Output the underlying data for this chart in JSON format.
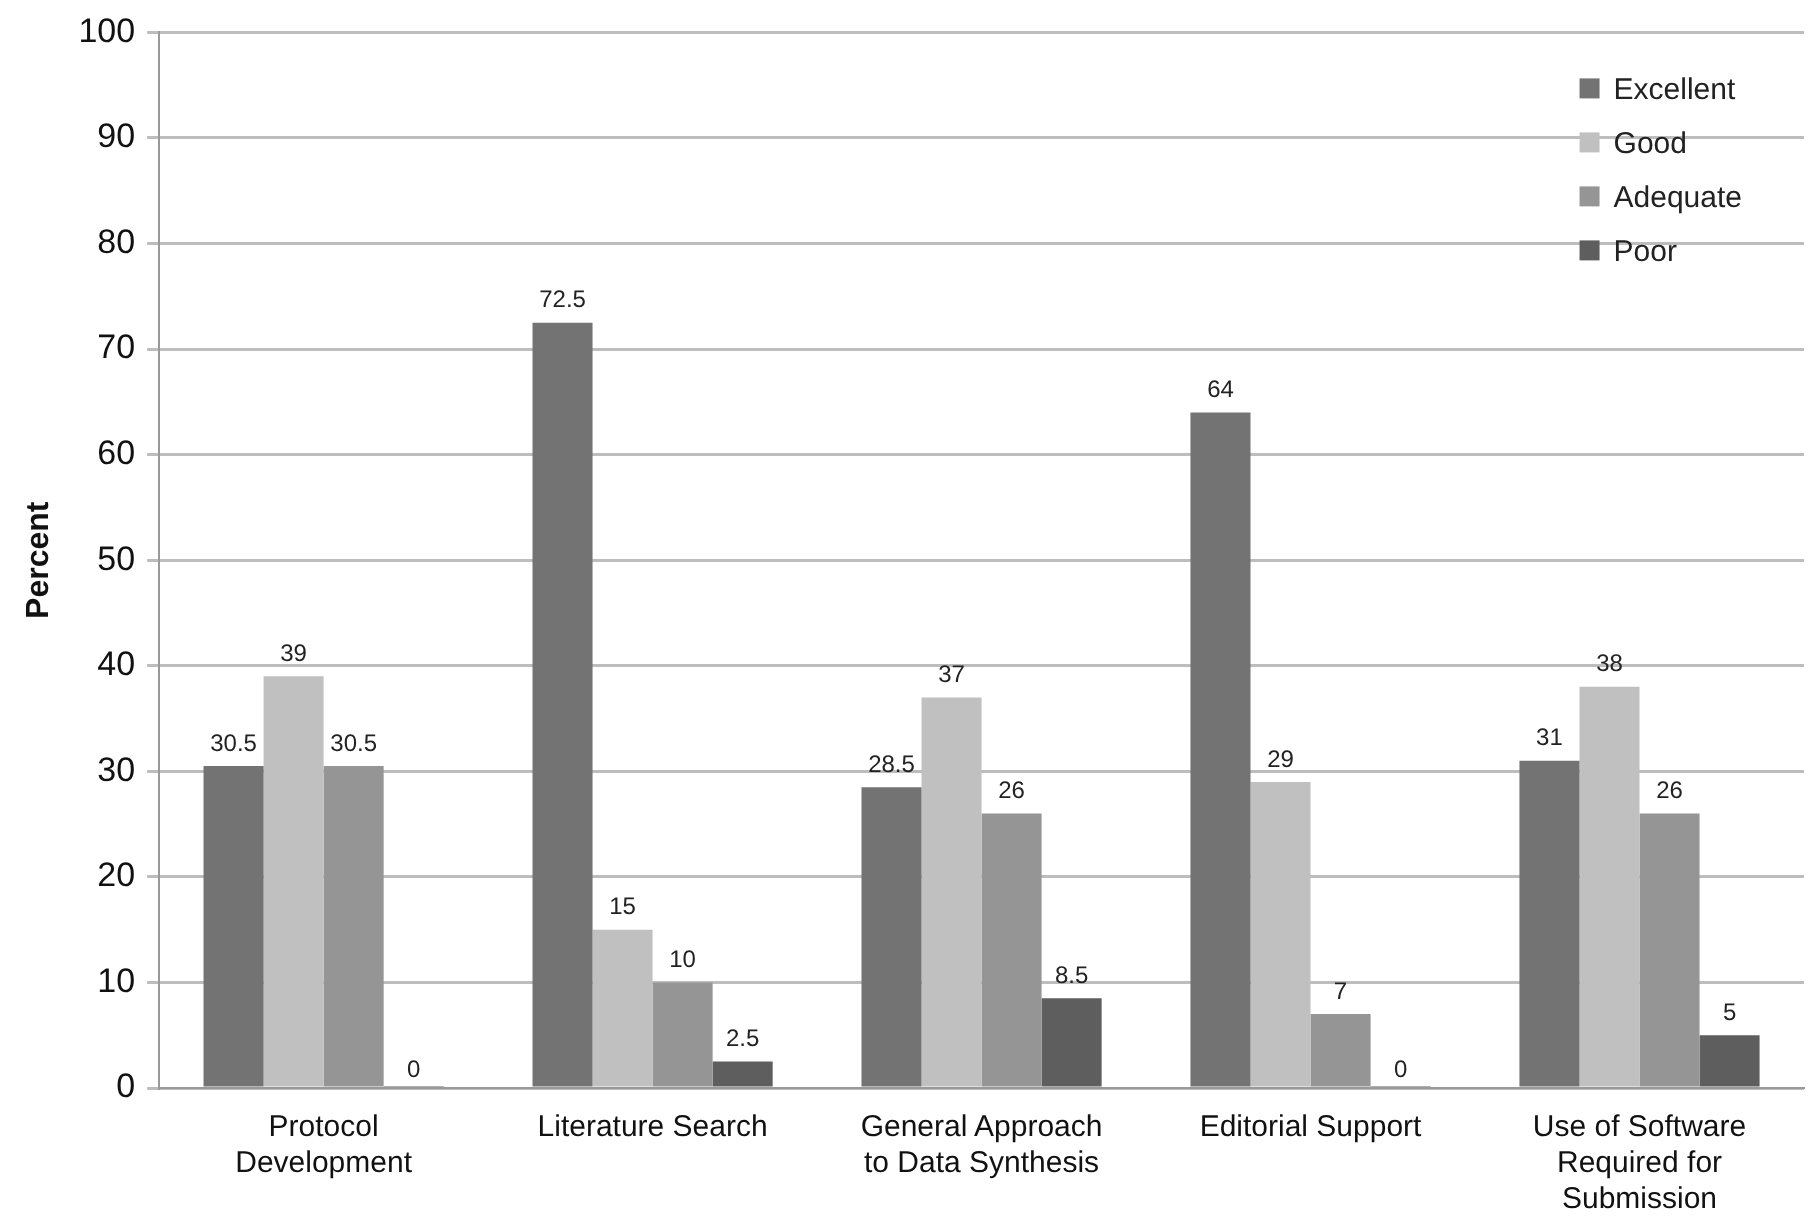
{
  "chart_data": {
    "type": "bar",
    "ylabel": "Percent",
    "categories": [
      "Protocol Development",
      "Literature Search",
      "General Approach to Data Synthesis",
      "Editorial Support",
      "Use of Software Required for Submission"
    ],
    "series": [
      {
        "name": "Excellent",
        "color": "#737373",
        "values": [
          30.5,
          72.5,
          28.5,
          64,
          31
        ]
      },
      {
        "name": "Good",
        "color": "#c0c0c0",
        "values": [
          39,
          15,
          37,
          29,
          38
        ]
      },
      {
        "name": "Adequate",
        "color": "#959595",
        "values": [
          30.5,
          10,
          26,
          7,
          26
        ]
      },
      {
        "name": "Poor",
        "color": "#5e5e5e",
        "values": [
          0,
          2.5,
          8.5,
          0,
          5
        ]
      }
    ],
    "ylim": [
      0,
      100
    ],
    "yticks": [
      0,
      10,
      20,
      30,
      40,
      50,
      60,
      70,
      80,
      90,
      100
    ],
    "grid": "y",
    "legend": "top right",
    "data_labels": true
  }
}
